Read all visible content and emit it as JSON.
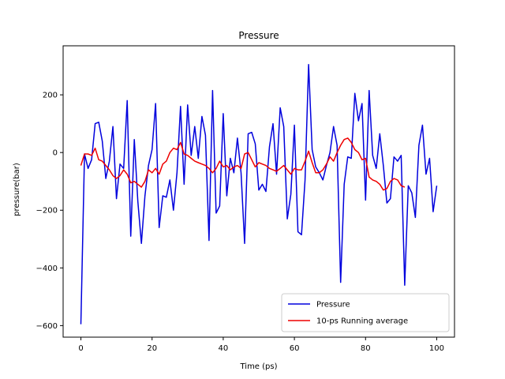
{
  "chart_data": {
    "type": "line",
    "title": "Pressure",
    "xlabel": "Time (ps)",
    "ylabel": "pressure(bar)",
    "xlim": [
      -5,
      105
    ],
    "ylim": [
      -640,
      370
    ],
    "xticks": [
      0,
      20,
      40,
      60,
      80,
      100
    ],
    "yticks": [
      -600,
      -400,
      -200,
      0,
      200
    ],
    "grid": false,
    "legend_position": "lower-right",
    "series": [
      {
        "name": "Pressure",
        "color": "#0000dd",
        "x": [
          0,
          1,
          2,
          3,
          4,
          5,
          6,
          7,
          8,
          9,
          10,
          11,
          12,
          13,
          14,
          15,
          16,
          17,
          18,
          19,
          20,
          21,
          22,
          23,
          24,
          25,
          26,
          27,
          28,
          29,
          30,
          31,
          32,
          33,
          34,
          35,
          36,
          37,
          38,
          39,
          40,
          41,
          42,
          43,
          44,
          45,
          46,
          47,
          48,
          49,
          50,
          51,
          52,
          53,
          54,
          55,
          56,
          57,
          58,
          59,
          60,
          61,
          62,
          63,
          64,
          65,
          66,
          67,
          68,
          69,
          70,
          71,
          72,
          73,
          74,
          75,
          76,
          77,
          78,
          79,
          80,
          81,
          82,
          83,
          84,
          85,
          86,
          87,
          88,
          89,
          90,
          91,
          92,
          93,
          94,
          95,
          96,
          97,
          98,
          99,
          100
        ],
        "y": [
          -595,
          -5,
          -55,
          -25,
          100,
          105,
          40,
          -90,
          -30,
          90,
          -160,
          -40,
          -55,
          180,
          -290,
          45,
          -170,
          -315,
          -150,
          -45,
          10,
          170,
          -260,
          -150,
          -155,
          -95,
          -200,
          -70,
          160,
          -110,
          165,
          -10,
          90,
          -20,
          125,
          60,
          -305,
          215,
          -210,
          -185,
          135,
          -150,
          -20,
          -70,
          50,
          -70,
          -315,
          65,
          70,
          30,
          -130,
          -110,
          -135,
          20,
          100,
          -75,
          155,
          90,
          -230,
          -145,
          95,
          -275,
          -285,
          -95,
          305,
          10,
          -50,
          -70,
          -95,
          -45,
          0,
          90,
          25,
          -450,
          -110,
          -15,
          -20,
          205,
          110,
          170,
          -165,
          215,
          -10,
          -55,
          65,
          -45,
          -175,
          -160,
          -15,
          -30,
          -10,
          -460,
          -115,
          -140,
          -225,
          25,
          95,
          -75,
          -20,
          -205,
          -115
        ]
      },
      {
        "name": "10-ps Running average",
        "color": "#ee0000",
        "x": [
          0,
          1,
          2,
          3,
          4,
          5,
          6,
          7,
          8,
          9,
          10,
          11,
          12,
          13,
          14,
          15,
          16,
          17,
          18,
          19,
          20,
          21,
          22,
          23,
          24,
          25,
          26,
          27,
          28,
          29,
          30,
          31,
          32,
          33,
          34,
          35,
          36,
          37,
          38,
          39,
          40,
          41,
          42,
          43,
          44,
          45,
          46,
          47,
          48,
          49,
          50,
          51,
          52,
          53,
          54,
          55,
          56,
          57,
          58,
          59,
          60,
          61,
          62,
          63,
          64,
          65,
          66,
          67,
          68,
          69,
          70,
          71,
          72,
          73,
          74,
          75,
          76,
          77,
          78,
          79,
          80,
          81,
          82,
          83,
          84,
          85,
          86,
          87,
          88,
          89,
          90,
          91
        ],
        "y": [
          -45,
          -5,
          -5,
          -10,
          15,
          -25,
          -30,
          -45,
          -60,
          -80,
          -90,
          -80,
          -60,
          -75,
          -105,
          -100,
          -110,
          -120,
          -100,
          -60,
          -70,
          -55,
          -75,
          -40,
          -30,
          0,
          15,
          10,
          35,
          -5,
          -10,
          -20,
          -30,
          -35,
          -40,
          -45,
          -55,
          -70,
          -55,
          -30,
          -50,
          -45,
          -60,
          -50,
          -45,
          -55,
          -5,
          0,
          -25,
          -50,
          -35,
          -40,
          -45,
          -55,
          -60,
          -65,
          -55,
          -45,
          -60,
          -75,
          -55,
          -60,
          -60,
          -30,
          5,
          -35,
          -70,
          -70,
          -60,
          -40,
          -15,
          -30,
          0,
          25,
          45,
          50,
          35,
          10,
          0,
          -25,
          -20,
          -85,
          -95,
          -100,
          -110,
          -130,
          -125,
          -100,
          -90,
          -95,
          -115,
          -120
        ]
      }
    ]
  }
}
